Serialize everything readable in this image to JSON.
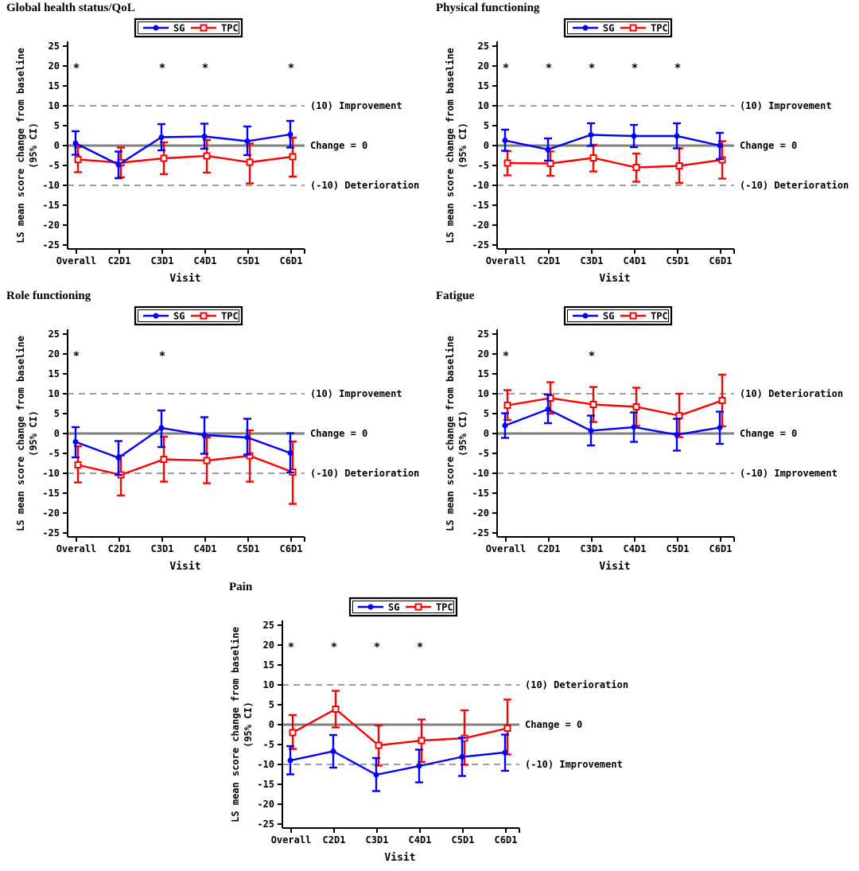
{
  "figure": {
    "background": "#ffffff",
    "description": "Five-panel figure of LS mean score change from baseline (95% CI) by visit, SG vs TPC"
  },
  "colors": {
    "sg": "#0000ff",
    "tpc": "#ff0000",
    "zero_line": "#7f7f7f",
    "ref_line": "#7f7f7f",
    "axis": "#000000",
    "text": "#000000",
    "legend_border": "#000000"
  },
  "chart_data": [
    {
      "type": "line",
      "title": "Global health status/QoL",
      "xlabel": "Visit",
      "ylabel": "LS mean score change from baseline",
      "ylabel2": "(95% CI)",
      "categories": [
        "Overall",
        "C2D1",
        "C3D1",
        "C4D1",
        "C5D1",
        "C6D1"
      ],
      "ylim": [
        -25,
        25
      ],
      "yticks": [
        25,
        20,
        15,
        10,
        5,
        0,
        -5,
        -10,
        -15,
        -20,
        -25
      ],
      "grid": false,
      "legend_position": "top-center",
      "ref_lines": [
        {
          "y": 10,
          "style": "dashed",
          "label": "(10) Improvement"
        },
        {
          "y": 0,
          "style": "solid",
          "label": "Change = 0"
        },
        {
          "y": -10,
          "style": "dashed",
          "label": "(-10) Deterioration"
        }
      ],
      "significance": {
        "symbol": "*",
        "y": 20,
        "categories": [
          "Overall",
          "C3D1",
          "C4D1",
          "C6D1"
        ]
      },
      "series": [
        {
          "name": "SG",
          "color": "#0000ff",
          "marker": "filled-circle",
          "values": [
            0.6,
            -4.8,
            2.1,
            2.3,
            1.1,
            2.8
          ],
          "ci_lower": [
            -2.3,
            -8.2,
            -1.2,
            -0.8,
            -2.4,
            -0.5
          ],
          "ci_upper": [
            3.6,
            -1.5,
            5.4,
            5.5,
            4.8,
            6.2
          ]
        },
        {
          "name": "TPC",
          "color": "#ff0000",
          "marker": "open-square",
          "values": [
            -3.5,
            -4.3,
            -3.2,
            -2.6,
            -4.2,
            -2.8
          ],
          "ci_lower": [
            -6.7,
            -8.0,
            -7.2,
            -6.8,
            -9.5,
            -7.8
          ],
          "ci_upper": [
            -0.4,
            -0.5,
            0.8,
            1.4,
            0.5,
            2.0
          ]
        }
      ]
    },
    {
      "type": "line",
      "title": "Physical functioning",
      "xlabel": "Visit",
      "ylabel": "LS mean score change from baseline",
      "ylabel2": "(95% CI)",
      "categories": [
        "Overall",
        "C2D1",
        "C3D1",
        "C4D1",
        "C5D1",
        "C6D1"
      ],
      "ylim": [
        -25,
        25
      ],
      "yticks": [
        25,
        20,
        15,
        10,
        5,
        0,
        -5,
        -10,
        -15,
        -20,
        -25
      ],
      "grid": false,
      "legend_position": "top-center",
      "ref_lines": [
        {
          "y": 10,
          "style": "dashed",
          "label": "(10) Improvement"
        },
        {
          "y": 0,
          "style": "solid",
          "label": "Change = 0"
        },
        {
          "y": -10,
          "style": "dashed",
          "label": "(-10) Deterioration"
        }
      ],
      "significance": {
        "symbol": "*",
        "y": 20,
        "categories": [
          "Overall",
          "C2D1",
          "C3D1",
          "C4D1",
          "C5D1"
        ]
      },
      "series": [
        {
          "name": "SG",
          "color": "#0000ff",
          "marker": "filled-circle",
          "values": [
            1.3,
            -1.0,
            2.7,
            2.4,
            2.4,
            0.0
          ],
          "ci_lower": [
            -1.3,
            -3.8,
            -0.1,
            -0.4,
            -0.7,
            -3.4
          ],
          "ci_upper": [
            4.0,
            1.8,
            5.6,
            5.2,
            5.6,
            3.2
          ]
        },
        {
          "name": "TPC",
          "color": "#ff0000",
          "marker": "open-square",
          "values": [
            -4.4,
            -4.5,
            -3.1,
            -5.5,
            -5.1,
            -3.6
          ],
          "ci_lower": [
            -7.5,
            -7.6,
            -6.5,
            -9.1,
            -9.4,
            -8.3
          ],
          "ci_upper": [
            -1.4,
            -1.5,
            0.2,
            -2.0,
            -0.7,
            1.1
          ]
        }
      ]
    },
    {
      "type": "line",
      "title": "Role functioning",
      "xlabel": "Visit",
      "ylabel": "LS mean score change from baseline",
      "ylabel2": "(95% CI)",
      "categories": [
        "Overall",
        "C2D1",
        "C3D1",
        "C4D1",
        "C5D1",
        "C6D1"
      ],
      "ylim": [
        -25,
        25
      ],
      "yticks": [
        25,
        20,
        15,
        10,
        5,
        0,
        -5,
        -10,
        -15,
        -20,
        -25
      ],
      "grid": false,
      "legend_position": "top-center",
      "ref_lines": [
        {
          "y": 10,
          "style": "dashed",
          "label": "(10) Improvement"
        },
        {
          "y": 0,
          "style": "solid",
          "label": "Change = 0"
        },
        {
          "y": -10,
          "style": "dashed",
          "label": "(-10) Deterioration"
        }
      ],
      "significance": {
        "symbol": "*",
        "y": 20,
        "categories": [
          "Overall",
          "C3D1"
        ]
      },
      "series": [
        {
          "name": "SG",
          "color": "#0000ff",
          "marker": "filled-circle",
          "values": [
            -2.1,
            -6.1,
            1.4,
            -0.4,
            -1.0,
            -4.9
          ],
          "ci_lower": [
            -6.0,
            -10.4,
            -3.4,
            -5.1,
            -5.3,
            -9.8
          ],
          "ci_upper": [
            1.6,
            -1.9,
            5.8,
            4.1,
            3.7,
            0.1
          ]
        },
        {
          "name": "TPC",
          "color": "#ff0000",
          "marker": "open-square",
          "values": [
            -7.9,
            -10.4,
            -6.5,
            -6.8,
            -5.6,
            -9.7
          ],
          "ci_lower": [
            -12.3,
            -15.6,
            -12.1,
            -12.5,
            -12.1,
            -17.7
          ],
          "ci_upper": [
            -3.2,
            -5.5,
            -0.8,
            -1.0,
            0.8,
            -2.0
          ]
        }
      ]
    },
    {
      "type": "line",
      "title": "Fatigue",
      "xlabel": "Visit",
      "ylabel": "LS mean score change from baseline",
      "ylabel2": "(95% CI)",
      "categories": [
        "Overall",
        "C2D1",
        "C3D1",
        "C4D1",
        "C5D1",
        "C6D1"
      ],
      "ylim": [
        -25,
        25
      ],
      "yticks": [
        25,
        20,
        15,
        10,
        5,
        0,
        -5,
        -10,
        -15,
        -20,
        -25
      ],
      "grid": false,
      "legend_position": "top-center",
      "ref_lines": [
        {
          "y": 10,
          "style": "dashed",
          "label": "(10) Deterioration"
        },
        {
          "y": 0,
          "style": "solid",
          "label": "Change = 0"
        },
        {
          "y": -10,
          "style": "dashed",
          "label": "(-10) Improvement"
        }
      ],
      "significance": {
        "symbol": "*",
        "y": 20,
        "categories": [
          "Overall",
          "C3D1"
        ]
      },
      "series": [
        {
          "name": "SG",
          "color": "#0000ff",
          "marker": "filled-circle",
          "values": [
            2.0,
            6.1,
            0.7,
            1.6,
            -0.3,
            1.5
          ],
          "ci_lower": [
            -1.1,
            2.6,
            -3.0,
            -2.1,
            -4.3,
            -2.6
          ],
          "ci_upper": [
            5.1,
            9.8,
            4.5,
            5.3,
            3.7,
            5.5
          ]
        },
        {
          "name": "TPC",
          "color": "#ff0000",
          "marker": "open-square",
          "values": [
            7.1,
            8.9,
            7.3,
            6.7,
            4.5,
            8.3
          ],
          "ci_lower": [
            3.4,
            5.0,
            2.9,
            1.9,
            -0.9,
            1.8
          ],
          "ci_upper": [
            10.9,
            12.9,
            11.7,
            11.5,
            10.0,
            14.8
          ]
        }
      ]
    },
    {
      "type": "line",
      "title": "Pain",
      "xlabel": "Visit",
      "ylabel": "LS mean score change from baseline",
      "ylabel2": "(95% CI)",
      "categories": [
        "Overall",
        "C2D1",
        "C3D1",
        "C4D1",
        "C5D1",
        "C6D1"
      ],
      "ylim": [
        -25,
        25
      ],
      "yticks": [
        25,
        20,
        15,
        10,
        5,
        0,
        -5,
        -10,
        -15,
        -20,
        -25
      ],
      "grid": false,
      "legend_position": "top-center",
      "ref_lines": [
        {
          "y": 10,
          "style": "dashed",
          "label": "(10) Deterioration"
        },
        {
          "y": 0,
          "style": "solid",
          "label": "Change = 0"
        },
        {
          "y": -10,
          "style": "dashed",
          "label": "(-10) Improvement"
        }
      ],
      "significance": {
        "symbol": "*",
        "y": 20,
        "categories": [
          "Overall",
          "C2D1",
          "C3D1",
          "C4D1"
        ]
      },
      "series": [
        {
          "name": "SG",
          "color": "#0000ff",
          "marker": "filled-circle",
          "values": [
            -9.0,
            -6.7,
            -12.6,
            -10.4,
            -8.1,
            -7.0
          ],
          "ci_lower": [
            -12.5,
            -10.8,
            -16.7,
            -14.5,
            -12.9,
            -11.6
          ],
          "ci_upper": [
            -5.4,
            -2.6,
            -8.4,
            -6.3,
            -3.3,
            -2.5
          ]
        },
        {
          "name": "TPC",
          "color": "#ff0000",
          "marker": "open-square",
          "values": [
            -2.0,
            3.9,
            -5.2,
            -4.0,
            -3.4,
            -0.9
          ],
          "ci_lower": [
            -6.1,
            -0.7,
            -10.3,
            -9.4,
            -10.1,
            -7.5
          ],
          "ci_upper": [
            2.4,
            8.5,
            -0.2,
            1.3,
            3.6,
            6.3
          ]
        }
      ]
    }
  ]
}
